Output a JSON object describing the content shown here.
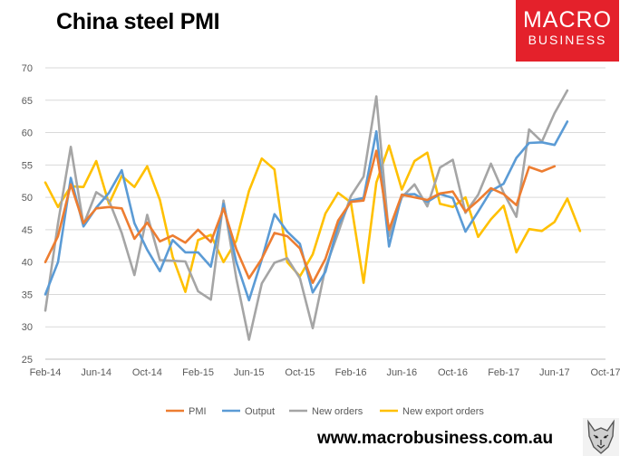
{
  "header": {
    "title": "China steel PMI",
    "logo_line1": "MACRO",
    "logo_line2": "BUSINESS"
  },
  "footer": {
    "url": "www.macrobusiness.com.au"
  },
  "colors": {
    "pmi": "#ED7D31",
    "output": "#5B9BD5",
    "new_orders": "#A5A5A5",
    "new_export_orders": "#FFC000",
    "brand_red": "#E4212B"
  },
  "chart_data": {
    "type": "line",
    "title": "China steel PMI",
    "xlabel": "",
    "ylabel": "",
    "ylim": [
      25,
      70
    ],
    "yticks": [
      25,
      30,
      35,
      40,
      45,
      50,
      55,
      60,
      65,
      70
    ],
    "xlim": [
      "Feb-14",
      "Oct-17"
    ],
    "x_tick_labels": [
      "Feb-14",
      "Jun-14",
      "Oct-14",
      "Feb-15",
      "Jun-15",
      "Oct-15",
      "Feb-16",
      "Jun-16",
      "Oct-16",
      "Feb-17",
      "Jun-17",
      "Oct-17"
    ],
    "grid": true,
    "legend": "bottom",
    "x": [
      "Feb-14",
      "Mar-14",
      "Apr-14",
      "May-14",
      "Jun-14",
      "Jul-14",
      "Aug-14",
      "Sep-14",
      "Oct-14",
      "Nov-14",
      "Dec-14",
      "Jan-15",
      "Feb-15",
      "Mar-15",
      "Apr-15",
      "May-15",
      "Jun-15",
      "Jul-15",
      "Aug-15",
      "Sep-15",
      "Oct-15",
      "Nov-15",
      "Dec-15",
      "Jan-16",
      "Feb-16",
      "Mar-16",
      "Apr-16",
      "May-16",
      "Jun-16",
      "Jul-16",
      "Aug-16",
      "Sep-16",
      "Oct-16",
      "Nov-16",
      "Dec-16",
      "Jan-17",
      "Feb-17",
      "Mar-17",
      "Apr-17",
      "May-17",
      "Jun-17",
      "Jul-17",
      "Aug-17"
    ],
    "series": [
      {
        "name": "PMI",
        "values": [
          40.0,
          44.0,
          52.0,
          46.0,
          48.3,
          48.5,
          48.3,
          43.6,
          46.1,
          43.2,
          44.1,
          43.0,
          45.0,
          43.1,
          48.3,
          42.0,
          37.5,
          40.5,
          44.5,
          44.0,
          42.1,
          36.8,
          40.5,
          46.4,
          49.3,
          49.5,
          57.2,
          45.0,
          50.4,
          50.0,
          49.6,
          50.6,
          50.9,
          47.8,
          49.5,
          51.4,
          50.5,
          48.8,
          54.7,
          54.0,
          54.8,
          null,
          null
        ]
      },
      {
        "name": "Output",
        "values": [
          35.0,
          40.0,
          53.0,
          45.5,
          48.4,
          50.7,
          54.2,
          46.0,
          41.9,
          38.6,
          43.4,
          41.5,
          41.5,
          39.3,
          49.0,
          40.0,
          34.1,
          40.4,
          47.4,
          44.7,
          42.8,
          35.3,
          38.5,
          45.6,
          49.5,
          49.9,
          60.2,
          42.4,
          50.4,
          50.5,
          49.3,
          50.5,
          49.9,
          44.7,
          47.8,
          51.0,
          52.1,
          56.1,
          58.4,
          58.5,
          58.1,
          61.7,
          null
        ]
      },
      {
        "name": "New orders",
        "values": [
          32.5,
          46.0,
          57.8,
          45.8,
          50.8,
          49.5,
          44.5,
          38.0,
          47.3,
          40.3,
          40.2,
          40.1,
          35.5,
          34.2,
          49.5,
          37.5,
          28.0,
          36.7,
          39.9,
          40.6,
          37.5,
          29.8,
          39.1,
          44.5,
          50.2,
          53.2,
          65.6,
          44.0,
          50.0,
          52.0,
          48.6,
          54.6,
          55.8,
          47.6,
          50.4,
          55.2,
          50.7,
          47.0,
          60.5,
          58.6,
          63.0,
          66.5,
          null
        ]
      },
      {
        "name": "New export orders",
        "values": [
          52.3,
          48.5,
          51.7,
          51.6,
          55.6,
          49.0,
          53.3,
          51.6,
          54.8,
          49.6,
          40.8,
          35.4,
          43.4,
          44.2,
          40.0,
          43.3,
          51.0,
          56.0,
          54.3,
          40.0,
          37.8,
          41.2,
          47.5,
          50.7,
          49.2,
          36.8,
          52.3,
          58.0,
          51.2,
          55.6,
          56.9,
          49.0,
          48.5,
          50.0,
          43.9,
          46.6,
          48.7,
          41.5,
          45.1,
          44.8,
          46.2,
          49.8,
          44.8
        ]
      }
    ]
  }
}
